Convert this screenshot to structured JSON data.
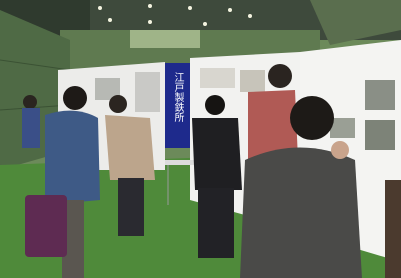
{
  "banner": {
    "text": "江戸製鉄所"
  }
}
